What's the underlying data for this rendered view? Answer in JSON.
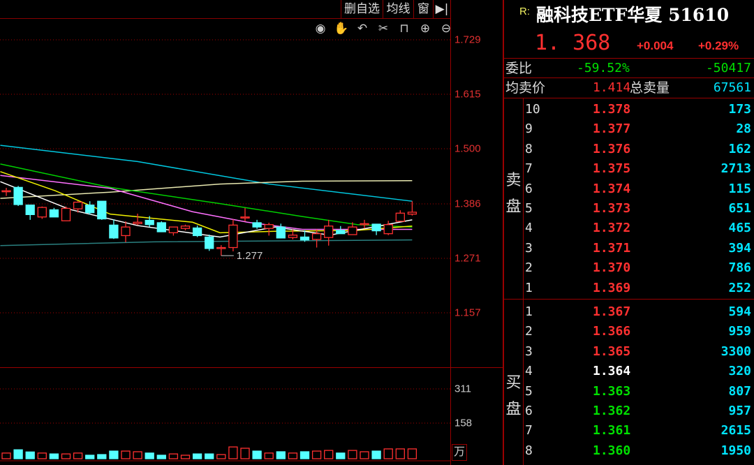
{
  "toolbar": {
    "delete_watch": "删自选",
    "ma": "均线",
    "window": "窗",
    "collapse_icon": "collapse-right-icon"
  },
  "tools": [
    "eye-icon",
    "hand-icon",
    "undo-icon",
    "scissors-icon",
    "lock-icon",
    "zoom-in-icon",
    "zoom-out-icon"
  ],
  "header": {
    "prefix": "R:",
    "title": "融科技ETF华夏 51610",
    "price": "1. 368",
    "change": "+0.004",
    "change_pct": "+0.29%"
  },
  "stats": {
    "ratio_label": "委比",
    "ratio_pct": "-59.52%",
    "ratio_diff": "-50417",
    "avg_ask_label": "均卖价",
    "avg_ask": "1.414",
    "total_ask_label": "总卖量",
    "total_ask": "67561"
  },
  "sell_label": [
    "卖",
    "盘"
  ],
  "buy_label": [
    "买",
    "盘"
  ],
  "sell_levels": [
    {
      "level": "10",
      "price": "1.378",
      "volume": "173"
    },
    {
      "level": "9",
      "price": "1.377",
      "volume": "28"
    },
    {
      "level": "8",
      "price": "1.376",
      "volume": "162"
    },
    {
      "level": "7",
      "price": "1.375",
      "volume": "2713"
    },
    {
      "level": "6",
      "price": "1.374",
      "volume": "115"
    },
    {
      "level": "5",
      "price": "1.373",
      "volume": "651"
    },
    {
      "level": "4",
      "price": "1.372",
      "volume": "465"
    },
    {
      "level": "3",
      "price": "1.371",
      "volume": "394"
    },
    {
      "level": "2",
      "price": "1.370",
      "volume": "786"
    },
    {
      "level": "1",
      "price": "1.369",
      "volume": "252"
    }
  ],
  "buy_levels": [
    {
      "level": "1",
      "price": "1.367",
      "volume": "594",
      "color": "red"
    },
    {
      "level": "2",
      "price": "1.366",
      "volume": "959",
      "color": "red"
    },
    {
      "level": "3",
      "price": "1.365",
      "volume": "3300",
      "color": "red"
    },
    {
      "level": "4",
      "price": "1.364",
      "volume": "320",
      "color": "white"
    },
    {
      "level": "5",
      "price": "1.363",
      "volume": "807",
      "color": "green"
    },
    {
      "level": "6",
      "price": "1.362",
      "volume": "957",
      "color": "green"
    },
    {
      "level": "7",
      "price": "1.361",
      "volume": "2615",
      "color": "green"
    },
    {
      "level": "8",
      "price": "1.360",
      "volume": "1950",
      "color": "green"
    }
  ],
  "colors": {
    "up": "#ff3030",
    "down": "#55ffff",
    "grid": "#aa0000"
  },
  "chart_data": {
    "type": "candlestick",
    "price_ticks": [
      "1.729",
      "1.615",
      "1.500",
      "1.386",
      "1.271",
      "1.157"
    ],
    "ylim": [
      1.1,
      1.78
    ],
    "volume_ticks": [
      "311",
      "158"
    ],
    "volume_unit": "万",
    "low_marker": "1.277",
    "candles": [
      [
        1.413,
        1.419,
        1.402,
        1.413
      ],
      [
        1.42,
        1.423,
        1.381,
        1.384
      ],
      [
        1.383,
        1.383,
        1.352,
        1.363
      ],
      [
        1.358,
        1.38,
        1.354,
        1.378
      ],
      [
        1.373,
        1.377,
        1.358,
        1.358
      ],
      [
        1.35,
        1.38,
        1.35,
        1.376
      ],
      [
        1.375,
        1.391,
        1.367,
        1.389
      ],
      [
        1.383,
        1.391,
        1.363,
        1.367
      ],
      [
        1.391,
        1.391,
        1.352,
        1.354
      ],
      [
        1.341,
        1.353,
        1.312,
        1.314
      ],
      [
        1.319,
        1.349,
        1.305,
        1.337
      ],
      [
        1.344,
        1.365,
        1.341,
        1.347
      ],
      [
        1.351,
        1.36,
        1.337,
        1.342
      ],
      [
        1.346,
        1.349,
        1.327,
        1.327
      ],
      [
        1.325,
        1.337,
        1.319,
        1.337
      ],
      [
        1.334,
        1.342,
        1.33,
        1.339
      ],
      [
        1.335,
        1.34,
        1.316,
        1.319
      ],
      [
        1.316,
        1.321,
        1.287,
        1.292
      ],
      [
        1.293,
        1.299,
        1.277,
        1.294
      ],
      [
        1.294,
        1.353,
        1.286,
        1.341
      ],
      [
        1.358,
        1.377,
        1.349,
        1.358
      ],
      [
        1.346,
        1.352,
        1.333,
        1.337
      ],
      [
        1.334,
        1.346,
        1.319,
        1.342
      ],
      [
        1.337,
        1.344,
        1.313,
        1.314
      ],
      [
        1.315,
        1.332,
        1.311,
        1.32
      ],
      [
        1.316,
        1.33,
        1.306,
        1.31
      ],
      [
        1.311,
        1.332,
        1.294,
        1.323
      ],
      [
        1.315,
        1.352,
        1.298,
        1.339
      ],
      [
        1.33,
        1.339,
        1.323,
        1.323
      ],
      [
        1.321,
        1.347,
        1.321,
        1.337
      ],
      [
        1.344,
        1.352,
        1.334,
        1.344
      ],
      [
        1.343,
        1.343,
        1.32,
        1.329
      ],
      [
        1.323,
        1.35,
        1.32,
        1.342
      ],
      [
        1.349,
        1.372,
        1.349,
        1.366
      ],
      [
        1.364,
        1.391,
        1.361,
        1.368
      ]
    ],
    "volumes": [
      26,
      41,
      31,
      26,
      22,
      22,
      26,
      16,
      19,
      35,
      35,
      32,
      26,
      16,
      22,
      16,
      22,
      22,
      19,
      54,
      48,
      35,
      26,
      32,
      26,
      32,
      35,
      38,
      26,
      38,
      32,
      35,
      45,
      45,
      45
    ],
    "ma_lines": [
      {
        "color": "#00c8e0",
        "points": [
          [
            0.5,
            1.508
          ],
          [
            12,
            1.474
          ],
          [
            23,
            1.427
          ],
          [
            35,
            1.391
          ]
        ]
      },
      {
        "color": "#e8e8b0",
        "points": [
          [
            0.5,
            1.397
          ],
          [
            9.7,
            1.41
          ],
          [
            18.9,
            1.427
          ],
          [
            25.8,
            1.433
          ],
          [
            35,
            1.434
          ]
        ]
      },
      {
        "color": "#00d000",
        "points": [
          [
            0.5,
            1.469
          ],
          [
            9.7,
            1.42
          ],
          [
            18.9,
            1.386
          ],
          [
            25.8,
            1.359
          ],
          [
            30.4,
            1.342
          ],
          [
            35,
            1.337
          ]
        ]
      },
      {
        "color": "#ff70ff",
        "points": [
          [
            0.5,
            1.445
          ],
          [
            9.7,
            1.418
          ],
          [
            16.6,
            1.369
          ],
          [
            21.2,
            1.347
          ],
          [
            25.8,
            1.332
          ],
          [
            35,
            1.332
          ]
        ]
      },
      {
        "color": "#f0f000",
        "points": [
          [
            0.5,
            1.453
          ],
          [
            5.1,
            1.413
          ],
          [
            9.7,
            1.364
          ],
          [
            16.6,
            1.347
          ],
          [
            18.9,
            1.325
          ],
          [
            23.5,
            1.328
          ],
          [
            30.4,
            1.33
          ],
          [
            35,
            1.339
          ]
        ]
      },
      {
        "color": "#ffffff",
        "points": [
          [
            0.5,
            1.432
          ],
          [
            6.3,
            1.374
          ],
          [
            12,
            1.34
          ],
          [
            18.9,
            1.316
          ],
          [
            23.5,
            1.337
          ],
          [
            28.1,
            1.32
          ],
          [
            35,
            1.352
          ]
        ]
      },
      {
        "color": "#2a8080",
        "points": [
          [
            0.5,
            1.298
          ],
          [
            13.4,
            1.306
          ],
          [
            35,
            1.31
          ]
        ]
      }
    ]
  }
}
